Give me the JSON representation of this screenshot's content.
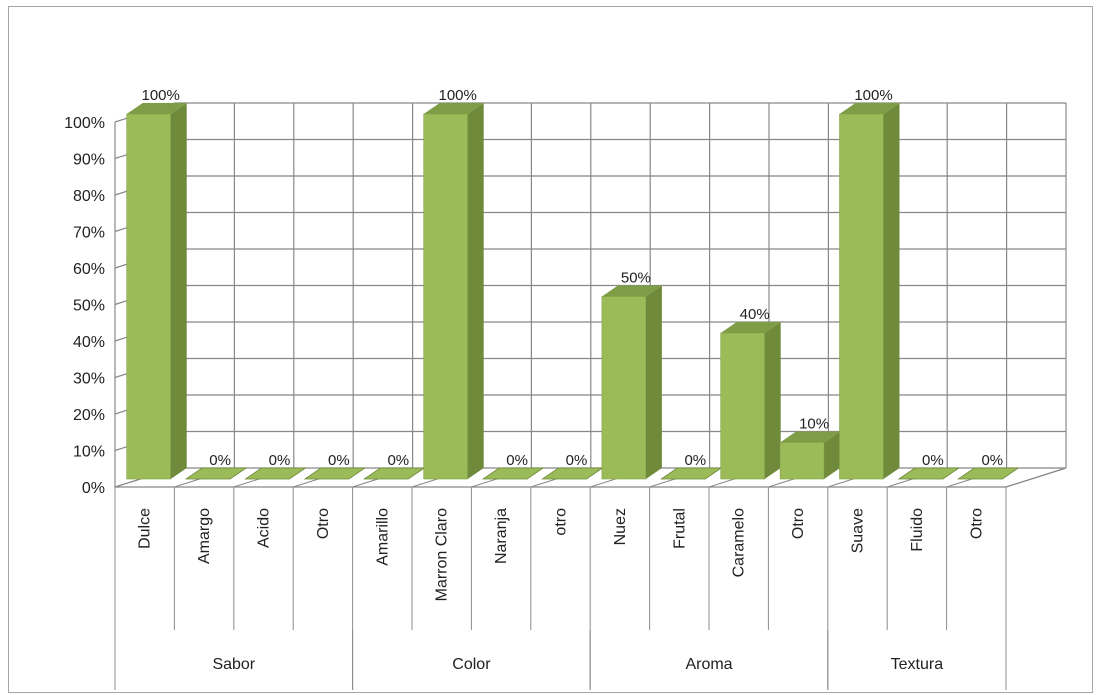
{
  "chart_data": {
    "type": "bar",
    "style": "3d-column",
    "title": "",
    "xlabel": "",
    "ylabel": "",
    "ylim": [
      0,
      100
    ],
    "y_unit": "%",
    "y_ticks": [
      "0%",
      "10%",
      "20%",
      "30%",
      "40%",
      "50%",
      "60%",
      "70%",
      "80%",
      "90%",
      "100%"
    ],
    "grid": true,
    "bar_color": "#9bbb59",
    "bar_side_color": "#6f8a3a",
    "bar_top_color": "#7f9d46",
    "groups": [
      {
        "name": "Sabor",
        "categories": [
          "Dulce",
          "Amargo",
          "Acido",
          "Otro"
        ],
        "values": [
          100,
          0,
          0,
          0
        ]
      },
      {
        "name": "Color",
        "categories": [
          "Amarillo",
          "Marron Claro",
          "Naranja",
          "otro"
        ],
        "values": [
          0,
          100,
          0,
          0
        ]
      },
      {
        "name": "Aroma",
        "categories": [
          "Nuez",
          "Frutal",
          "Caramelo",
          "Otro"
        ],
        "values": [
          50,
          0,
          40,
          10
        ]
      },
      {
        "name": "Textura",
        "categories": [
          "Suave",
          "Fluido",
          "Otro"
        ],
        "values": [
          100,
          0,
          0
        ]
      }
    ],
    "data_labels": [
      "100%",
      "0%",
      "0%",
      "0%",
      "0%",
      "100%",
      "0%",
      "0%",
      "50%",
      "0%",
      "40%",
      "10%",
      "100%",
      "0%",
      "0%"
    ]
  }
}
